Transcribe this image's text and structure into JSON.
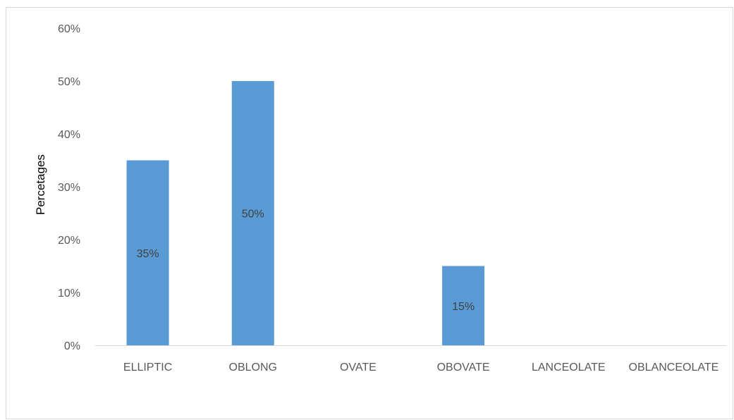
{
  "chart_data": {
    "type": "bar",
    "title": "",
    "xlabel": "",
    "ylabel": "Percetages",
    "categories": [
      "ELLIPTIC",
      "OBLONG",
      "OVATE",
      "OBOVATE",
      "LANCEOLATE",
      "OBLANCEOLATE"
    ],
    "values": [
      35,
      50,
      0,
      15,
      0,
      0
    ],
    "data_labels": [
      "35%",
      "50%",
      "",
      "15%",
      "",
      ""
    ],
    "ylim": [
      0,
      60
    ],
    "y_ticks": [
      "0%",
      "10%",
      "20%",
      "30%",
      "40%",
      "50%",
      "60%"
    ],
    "y_unit": "percent",
    "grid": false,
    "legend": "none",
    "bar_color": "#5b9bd5",
    "axis_color": "#d9d9d9"
  }
}
